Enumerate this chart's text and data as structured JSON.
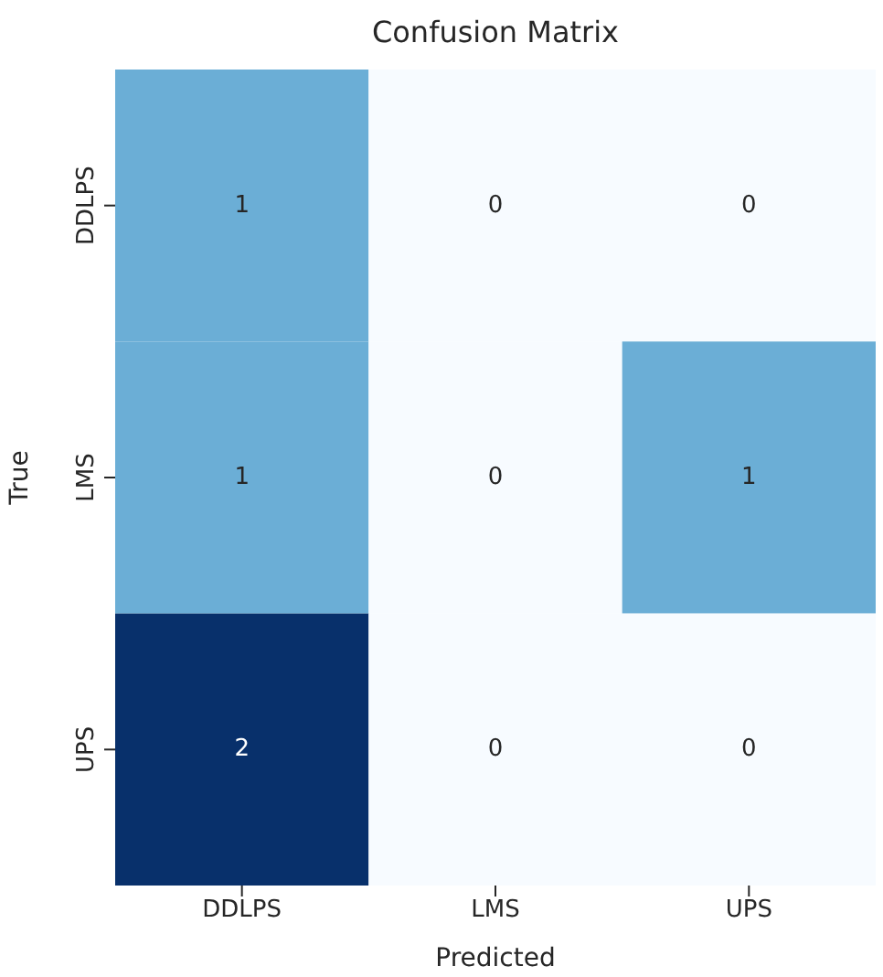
{
  "chart_data": {
    "type": "heatmap",
    "title": "Confusion Matrix",
    "xlabel": "Predicted",
    "ylabel": "True",
    "categories": [
      "DDLPS",
      "LMS",
      "UPS"
    ],
    "y_categories": [
      "DDLPS",
      "LMS",
      "UPS"
    ],
    "cells": [
      [
        1,
        0,
        0
      ],
      [
        1,
        0,
        1
      ],
      [
        2,
        0,
        0
      ]
    ],
    "data_labels": true
  }
}
